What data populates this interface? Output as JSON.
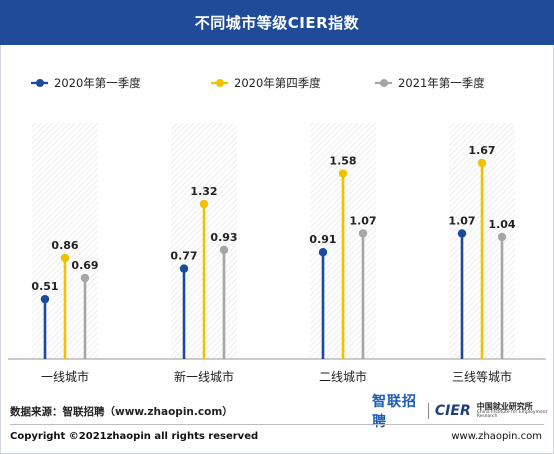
{
  "title": "不同城市等级CIER指数",
  "chart_data": {
    "type": "lollipop",
    "categories": [
      "一线城市",
      "新一线城市",
      "二线城市",
      "三线等城市"
    ],
    "series": [
      {
        "name": "2020年第一季度",
        "color": "#1a4a9a",
        "values": [
          0.51,
          0.77,
          0.91,
          1.07
        ],
        "labels": [
          "0.51",
          "0.77",
          "0.91",
          "1.07"
        ]
      },
      {
        "name": "2020年第四季度",
        "color": "#f2c200",
        "values": [
          0.86,
          1.32,
          1.58,
          1.67
        ],
        "labels": [
          "0.86",
          "1.32",
          "1.58",
          "1.67"
        ]
      },
      {
        "name": "2021年第一季度",
        "color": "#a6a6a6",
        "values": [
          0.69,
          0.93,
          1.07,
          1.04
        ],
        "labels": [
          "0.69",
          "0.93",
          "1.07",
          "1.04"
        ]
      }
    ],
    "ylim": [
      0,
      1.7
    ],
    "legend_position": "top",
    "grid": false
  },
  "footer": {
    "source": "数据来源：智联招聘（www.zhaopin.com）",
    "brand_zhaopin": "智联招聘",
    "brand_cier": "CIER",
    "brand_cier_cn": "中国就业研究所",
    "brand_cier_en": "China Institute for Employment Research",
    "copyright": "Copyright ©2021zhaopin all rights reserved",
    "website": "www.zhaopin.com"
  }
}
